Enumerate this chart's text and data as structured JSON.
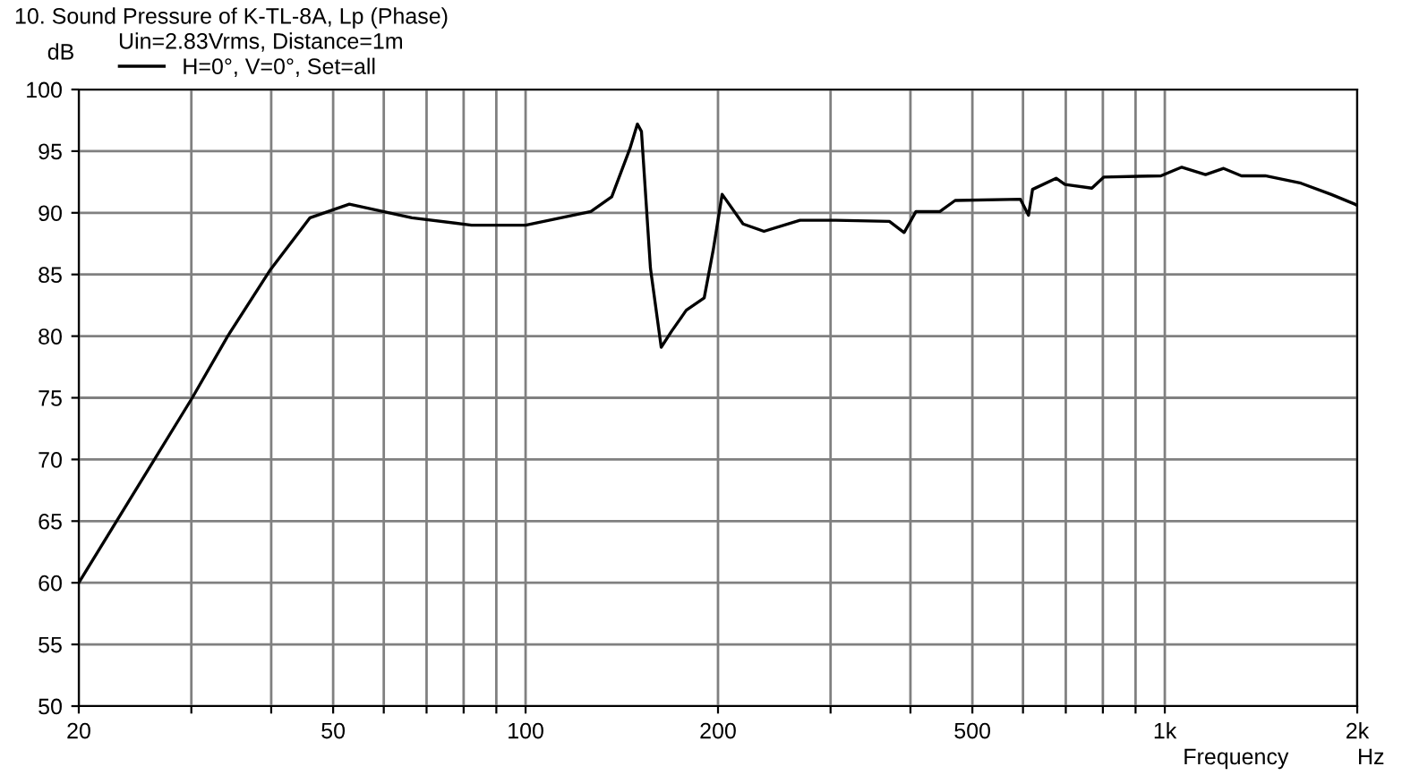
{
  "chart_data": {
    "type": "line",
    "title": "10. Sound Pressure of K-TL-8A, Lp (Phase)",
    "subtitle": "Uin=2.83Vrms, Distance=1m",
    "xlabel": "Frequency",
    "ylabel": "dB",
    "annotations": [
      "Hz"
    ],
    "log": "x",
    "grid": true,
    "legend": "top left",
    "marker": "none",
    "line_style": "solid",
    "xlim": [
      20,
      2000
    ],
    "ylim": [
      50,
      100
    ],
    "xticks": [
      20,
      {
        "value": 30,
        "label": null
      },
      {
        "value": 40,
        "label": null
      },
      50,
      {
        "value": 60,
        "label": null
      },
      {
        "value": 70,
        "label": null
      },
      {
        "value": 80,
        "label": null
      },
      {
        "value": 90,
        "label": null
      },
      100,
      200,
      {
        "value": 300,
        "label": null
      },
      {
        "value": 400,
        "label": null
      },
      500,
      {
        "value": 600,
        "label": null
      },
      {
        "value": 700,
        "label": null
      },
      {
        "value": 800,
        "label": null
      },
      {
        "value": 900,
        "label": null
      },
      {
        "value": 1000,
        "label": "1k"
      },
      {
        "value": 2000,
        "label": "2k"
      }
    ],
    "yticks": [
      50,
      55,
      60,
      65,
      70,
      75,
      80,
      85,
      90,
      95,
      100
    ],
    "series": [
      {
        "name": "H=0°, V=0°, Set=all",
        "color": "#000000",
        "x": [
          20,
          30.1,
          34.2,
          39.9,
          46,
          53,
          66.4,
          82.3,
          91.6,
          100,
          126.5,
          136.4,
          145.6,
          149.6,
          151.8,
          156.8,
          163,
          169.2,
          178.4,
          190.3,
          196.6,
          203,
          218.9,
          236,
          268.7,
          305.6,
          370.8,
          391,
          408,
          444.7,
          469.9,
          594.5,
          612,
          621,
          676,
          698,
          769,
          803,
          986,
          1063,
          1158,
          1236,
          1318,
          1436,
          1633,
          1819,
          1983,
          2000
        ],
        "values": [
          60,
          75,
          80,
          85.4,
          89.6,
          90.7,
          89.6,
          89.0,
          89.0,
          89.0,
          90.1,
          91.3,
          95.2,
          97.2,
          96.6,
          85.5,
          79.1,
          80.4,
          82.1,
          83.1,
          87.0,
          91.5,
          89.1,
          88.5,
          89.4,
          89.4,
          89.3,
          88.4,
          90.1,
          90.1,
          91.0,
          91.1,
          89.8,
          91.9,
          92.8,
          92.3,
          92.0,
          92.9,
          93.0,
          93.7,
          93.1,
          93.6,
          93.0,
          93.0,
          92.4,
          91.5,
          90.7,
          90.6
        ]
      }
    ]
  }
}
